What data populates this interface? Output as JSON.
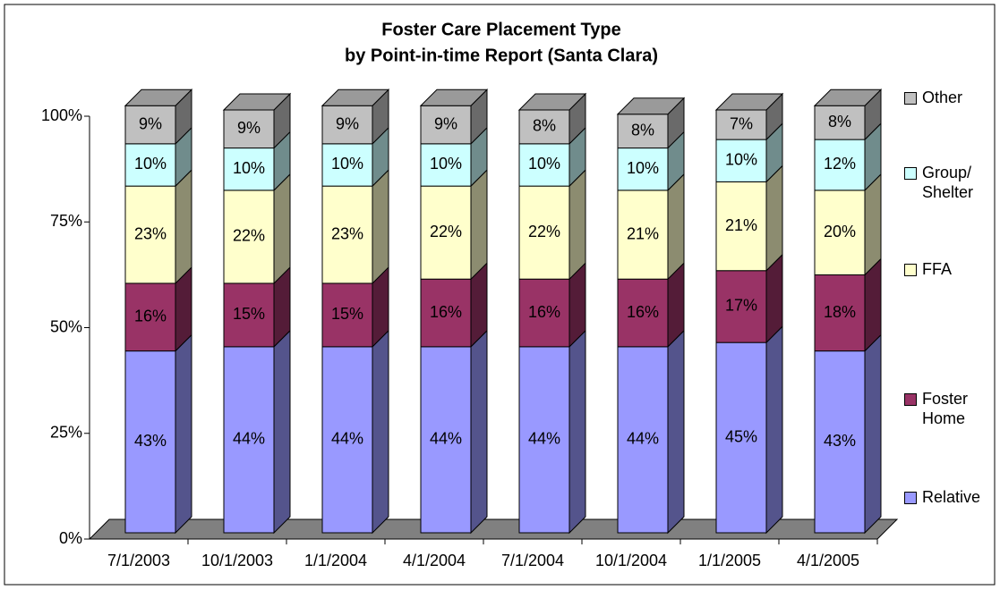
{
  "chart_data": {
    "type": "bar3d_stacked",
    "title": "Foster Care Placement Type",
    "subtitle": "by Point-in-time Report (Santa Clara)",
    "categories": [
      "7/1/2003",
      "10/1/2003",
      "1/1/2004",
      "4/1/2004",
      "7/1/2004",
      "10/1/2004",
      "1/1/2005",
      "4/1/2005"
    ],
    "series": [
      {
        "name": "Relative",
        "color": "#9999ff",
        "values": [
          43,
          44,
          44,
          44,
          44,
          44,
          45,
          43
        ],
        "value_labels": [
          "43%",
          "44%",
          "44%",
          "44%",
          "44%",
          "44%",
          "45%",
          "43%"
        ]
      },
      {
        "name": "Foster Home",
        "color": "#993366",
        "values": [
          16,
          15,
          15,
          16,
          16,
          16,
          17,
          18
        ],
        "value_labels": [
          "16%",
          "15%",
          "15%",
          "16%",
          "16%",
          "16%",
          "17%",
          "18%"
        ]
      },
      {
        "name": "FFA",
        "color": "#ffffcc",
        "values": [
          23,
          22,
          23,
          22,
          22,
          21,
          21,
          20
        ],
        "value_labels": [
          "23%",
          "22%",
          "23%",
          "22%",
          "22%",
          "21%",
          "21%",
          "20%"
        ]
      },
      {
        "name": "Group/ Shelter",
        "color": "#ccffff",
        "values": [
          10,
          10,
          10,
          10,
          10,
          10,
          10,
          12
        ],
        "value_labels": [
          "10%",
          "10%",
          "10%",
          "10%",
          "10%",
          "10%",
          "10%",
          "12%"
        ]
      },
      {
        "name": "Other",
        "color": "#c0c0c0",
        "values": [
          9,
          9,
          9,
          9,
          8,
          8,
          7,
          8
        ],
        "value_labels": [
          "9%",
          "9%",
          "9%",
          "9%",
          "8%",
          "8%",
          "7%",
          "8%"
        ]
      }
    ],
    "ylim": [
      0,
      100
    ],
    "yticks": [
      {
        "value": 0,
        "label": "0%"
      },
      {
        "value": 25,
        "label": "25%"
      },
      {
        "value": 50,
        "label": "50%"
      },
      {
        "value": 75,
        "label": "75%"
      },
      {
        "value": 100,
        "label": "100%"
      }
    ],
    "legend": "right"
  }
}
